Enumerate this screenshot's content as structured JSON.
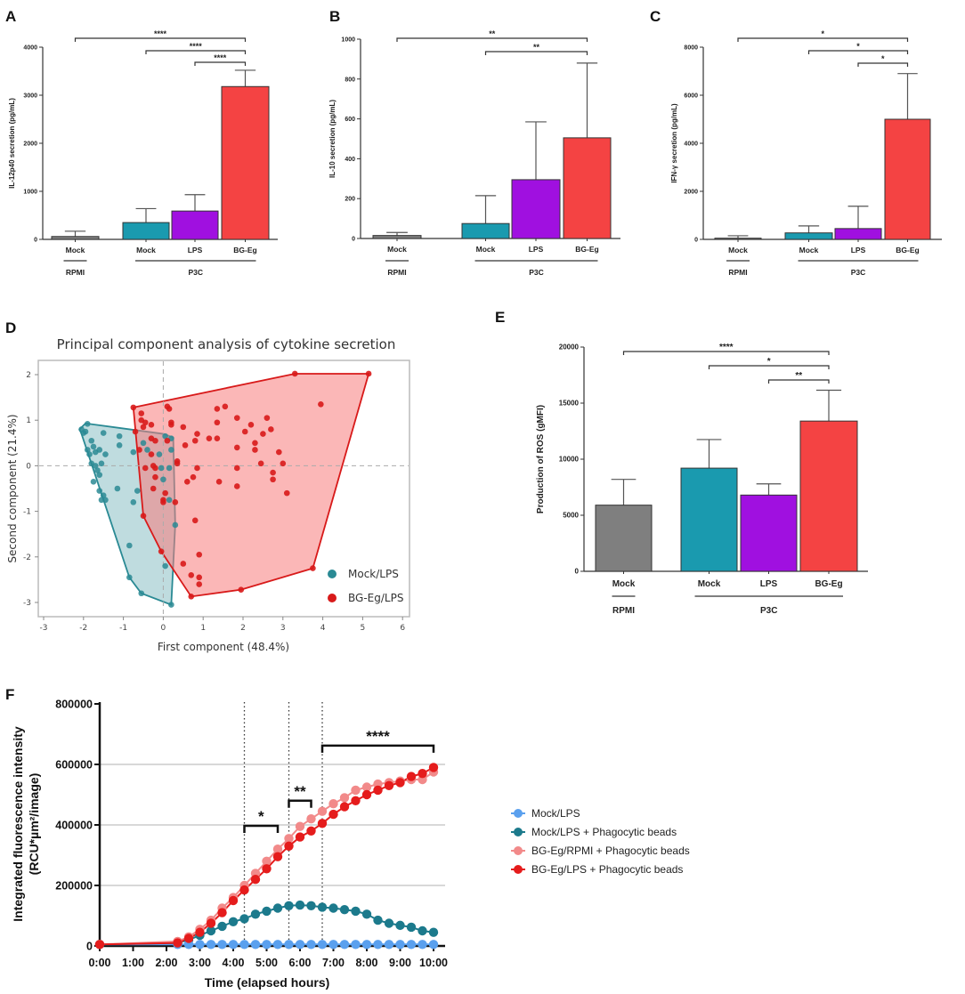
{
  "colors": {
    "gray": "#7f7f7f",
    "teal": "#1a9aaf",
    "purple": "#a010e0",
    "red": "#f44343"
  },
  "chart_data": [
    {
      "letter": "A",
      "type": "bar",
      "ylabel": "IL-12p40 secretion (pg/mL)",
      "ylim": [
        0,
        4000
      ],
      "yticks": [
        0,
        1000,
        2000,
        3000,
        4000
      ],
      "categories": [
        "Mock",
        "Mock",
        "LPS",
        "BG-Eg"
      ],
      "values": [
        60,
        350,
        590,
        3180
      ],
      "error_upper": [
        170,
        640,
        930,
        3520
      ],
      "bar_colors": [
        "#7f7f7f",
        "#1a9aaf",
        "#a010e0",
        "#f44343"
      ],
      "groups": [
        {
          "label": "RPMI",
          "from": 0,
          "to": 0
        },
        {
          "label": "P3C",
          "from": 1,
          "to": 3
        }
      ],
      "significance": [
        {
          "from": 0,
          "to": 3,
          "label": "****"
        },
        {
          "from": 1,
          "to": 3,
          "label": "****"
        },
        {
          "from": 2,
          "to": 3,
          "label": "****"
        }
      ]
    },
    {
      "letter": "B",
      "type": "bar",
      "ylabel": "IL-10 secretion (pg/mL)",
      "ylim": [
        0,
        1000
      ],
      "yticks": [
        0,
        200,
        400,
        600,
        800,
        1000
      ],
      "categories": [
        "Mock",
        "Mock",
        "LPS",
        "BG-Eg"
      ],
      "values": [
        15,
        75,
        295,
        505
      ],
      "error_upper": [
        30,
        215,
        585,
        880
      ],
      "bar_colors": [
        "#7f7f7f",
        "#1a9aaf",
        "#a010e0",
        "#f44343"
      ],
      "groups": [
        {
          "label": "RPMI",
          "from": 0,
          "to": 0
        },
        {
          "label": "P3C",
          "from": 1,
          "to": 3
        }
      ],
      "significance": [
        {
          "from": 0,
          "to": 3,
          "label": "**"
        },
        {
          "from": 1,
          "to": 3,
          "label": "**"
        }
      ]
    },
    {
      "letter": "C",
      "type": "bar",
      "ylabel": "IFN-γ secretion (pg/mL)",
      "ylim": [
        0,
        8000
      ],
      "yticks": [
        0,
        2000,
        4000,
        6000,
        8000
      ],
      "categories": [
        "Mock",
        "Mock",
        "LPS",
        "BG-Eg"
      ],
      "values": [
        50,
        270,
        450,
        5000
      ],
      "error_upper": [
        150,
        560,
        1380,
        6900
      ],
      "bar_colors": [
        "#7f7f7f",
        "#1a9aaf",
        "#a010e0",
        "#f44343"
      ],
      "groups": [
        {
          "label": "RPMI",
          "from": 0,
          "to": 0
        },
        {
          "label": "P3C",
          "from": 1,
          "to": 3
        }
      ],
      "significance": [
        {
          "from": 0,
          "to": 3,
          "label": "*"
        },
        {
          "from": 1,
          "to": 3,
          "label": "*"
        },
        {
          "from": 2,
          "to": 3,
          "label": "*"
        }
      ]
    },
    {
      "letter": "D",
      "type": "scatter",
      "title": "Principal component analysis of cytokine secretion",
      "xlabel": "First component (48.4%)",
      "ylabel": "Second component (21.4%)",
      "xlim": [
        -3,
        6
      ],
      "ylim": [
        -3.35,
        2.3
      ],
      "xticks": [
        -3,
        -2,
        -1,
        0,
        1,
        2,
        3,
        4,
        5,
        6
      ],
      "yticks": [
        -3,
        -2,
        -1,
        0,
        1,
        2
      ],
      "legend_position": "bottom-right",
      "series": [
        {
          "name": "Mock/LPS",
          "color": "#2a8a94",
          "fill": "#2a8a94",
          "hull": [
            [
              -2.1,
              0.8
            ],
            [
              -1.95,
              0.93
            ],
            [
              0.0,
              0.7
            ],
            [
              0.25,
              0.62
            ],
            [
              0.3,
              -1.3
            ],
            [
              0.2,
              -3.05
            ],
            [
              -0.55,
              -2.8
            ],
            [
              -0.85,
              -2.45
            ],
            [
              -2.05,
              0.7
            ]
          ],
          "points": [
            [
              -2.05,
              0.8
            ],
            [
              -1.95,
              0.75
            ],
            [
              -1.9,
              0.92
            ],
            [
              -2.0,
              0.72
            ],
            [
              -1.8,
              0.55
            ],
            [
              -1.75,
              0.42
            ],
            [
              -1.9,
              0.35
            ],
            [
              -1.85,
              0.25
            ],
            [
              -1.7,
              0.3
            ],
            [
              -1.6,
              0.35
            ],
            [
              -1.5,
              0.72
            ],
            [
              -1.45,
              0.25
            ],
            [
              -1.8,
              0.05
            ],
            [
              -1.7,
              0.0
            ],
            [
              -1.65,
              -0.1
            ],
            [
              -1.6,
              -0.2
            ],
            [
              -1.55,
              0.05
            ],
            [
              -1.75,
              -0.35
            ],
            [
              -1.6,
              -0.55
            ],
            [
              -1.55,
              -0.75
            ],
            [
              -1.45,
              -0.75
            ],
            [
              -1.5,
              -0.65
            ],
            [
              -1.15,
              -0.5
            ],
            [
              -1.1,
              0.45
            ],
            [
              -1.1,
              0.65
            ],
            [
              -0.75,
              -0.8
            ],
            [
              -0.65,
              -0.55
            ],
            [
              -0.75,
              0.3
            ],
            [
              -0.5,
              0.5
            ],
            [
              -0.4,
              0.35
            ],
            [
              -0.1,
              0.25
            ],
            [
              -0.05,
              -0.05
            ],
            [
              0.0,
              -0.3
            ],
            [
              0.05,
              0.65
            ],
            [
              0.15,
              -0.05
            ],
            [
              0.2,
              0.35
            ],
            [
              0.2,
              0.6
            ],
            [
              0.15,
              -0.75
            ],
            [
              0.3,
              -1.3
            ],
            [
              -0.85,
              -1.75
            ],
            [
              -0.85,
              -2.45
            ],
            [
              -0.55,
              -2.8
            ],
            [
              0.05,
              -2.2
            ],
            [
              0.2,
              -3.05
            ]
          ]
        },
        {
          "name": "BG-Eg/LPS",
          "color": "#d81a1a",
          "fill": "#f77b7b",
          "hull": [
            [
              -0.75,
              1.28
            ],
            [
              3.3,
              2.02
            ],
            [
              5.15,
              2.02
            ],
            [
              3.75,
              -2.25
            ],
            [
              1.95,
              -2.72
            ],
            [
              0.7,
              -2.87
            ],
            [
              -0.05,
              -1.88
            ],
            [
              -0.5,
              -1.1
            ]
          ],
          "points": [
            [
              -0.75,
              1.28
            ],
            [
              -0.55,
              1.15
            ],
            [
              -0.55,
              1.0
            ],
            [
              -0.45,
              0.95
            ],
            [
              -0.3,
              0.9
            ],
            [
              -0.5,
              0.85
            ],
            [
              -0.7,
              0.75
            ],
            [
              -0.3,
              0.6
            ],
            [
              -0.2,
              0.55
            ],
            [
              -0.6,
              0.35
            ],
            [
              -0.3,
              0.25
            ],
            [
              -0.45,
              -0.05
            ],
            [
              -0.2,
              -0.05
            ],
            [
              -0.25,
              0.0
            ],
            [
              -0.2,
              -0.25
            ],
            [
              -0.25,
              -0.5
            ],
            [
              0.05,
              -0.6
            ],
            [
              0.0,
              -0.8
            ],
            [
              0.0,
              -0.75
            ],
            [
              0.1,
              1.3
            ],
            [
              0.15,
              1.25
            ],
            [
              0.2,
              0.95
            ],
            [
              0.2,
              0.9
            ],
            [
              0.1,
              0.55
            ],
            [
              0.35,
              0.1
            ],
            [
              0.35,
              0.05
            ],
            [
              0.3,
              -0.8
            ],
            [
              0.5,
              0.85
            ],
            [
              0.55,
              0.45
            ],
            [
              0.6,
              -0.35
            ],
            [
              0.75,
              -0.25
            ],
            [
              0.8,
              0.55
            ],
            [
              0.85,
              0.7
            ],
            [
              0.85,
              -0.05
            ],
            [
              1.15,
              0.6
            ],
            [
              1.35,
              0.6
            ],
            [
              1.35,
              0.95
            ],
            [
              1.35,
              1.25
            ],
            [
              1.55,
              1.3
            ],
            [
              1.4,
              -0.35
            ],
            [
              1.85,
              1.05
            ],
            [
              1.85,
              0.4
            ],
            [
              1.85,
              -0.05
            ],
            [
              1.85,
              -0.45
            ],
            [
              2.05,
              0.75
            ],
            [
              2.2,
              0.9
            ],
            [
              2.3,
              0.5
            ],
            [
              2.3,
              0.35
            ],
            [
              2.45,
              0.05
            ],
            [
              2.5,
              0.7
            ],
            [
              2.6,
              1.05
            ],
            [
              2.7,
              0.8
            ],
            [
              2.75,
              -0.15
            ],
            [
              2.75,
              -0.3
            ],
            [
              2.9,
              0.3
            ],
            [
              3.0,
              0.05
            ],
            [
              3.1,
              -0.6
            ],
            [
              3.95,
              1.35
            ],
            [
              3.3,
              2.02
            ],
            [
              5.15,
              2.02
            ],
            [
              3.75,
              -2.25
            ],
            [
              1.95,
              -2.72
            ],
            [
              0.7,
              -2.87
            ],
            [
              -0.05,
              -1.88
            ],
            [
              -0.5,
              -1.1
            ],
            [
              0.8,
              -1.2
            ],
            [
              0.9,
              -1.95
            ],
            [
              0.5,
              -2.15
            ],
            [
              0.7,
              -2.4
            ],
            [
              0.9,
              -2.45
            ],
            [
              0.9,
              -2.6
            ]
          ]
        }
      ]
    },
    {
      "letter": "E",
      "type": "bar",
      "ylabel": "Production of ROS (gMFI)",
      "ylim": [
        0,
        20000
      ],
      "yticks": [
        0,
        5000,
        10000,
        15000,
        20000
      ],
      "categories": [
        "Mock",
        "Mock",
        "LPS",
        "BG-Eg"
      ],
      "values": [
        5900,
        9200,
        6800,
        13400
      ],
      "error_upper": [
        8200,
        11750,
        7800,
        16150
      ],
      "bar_colors": [
        "#7f7f7f",
        "#1a9aaf",
        "#a010e0",
        "#f44343"
      ],
      "groups": [
        {
          "label": "RPMI",
          "from": 0,
          "to": 0
        },
        {
          "label": "P3C",
          "from": 1,
          "to": 3
        }
      ],
      "significance": [
        {
          "from": 0,
          "to": 3,
          "label": "****"
        },
        {
          "from": 1,
          "to": 3,
          "label": "*"
        },
        {
          "from": 2,
          "to": 3,
          "label": "**"
        }
      ]
    },
    {
      "letter": "F",
      "type": "line",
      "xlabel": "Time (elapsed hours)",
      "ylabel": "Integrated fluorescence intensity",
      "ylabel2": "(RCU*µm²/image)",
      "ylim": [
        0,
        800000
      ],
      "yticks": [
        0,
        200000,
        400000,
        600000,
        800000
      ],
      "xticks": [
        "0:00",
        "1:00",
        "2:00",
        "3:00",
        "4:00",
        "5:00",
        "6:00",
        "7:00",
        "8:00",
        "9:00",
        "10:00"
      ],
      "grid": "horizontal",
      "legend_position": "right",
      "x": [
        "0:00",
        "2:20",
        "2:40",
        "3:00",
        "3:20",
        "3:40",
        "4:00",
        "4:20",
        "4:40",
        "5:00",
        "5:20",
        "5:40",
        "6:00",
        "6:20",
        "6:40",
        "7:00",
        "7:20",
        "7:40",
        "8:00",
        "8:20",
        "8:40",
        "9:00",
        "9:20",
        "9:40",
        "10:00"
      ],
      "series": [
        {
          "name": "Mock/LPS",
          "color": "#5aa0ee",
          "values": [
            5000,
            5000,
            5000,
            5000,
            5000,
            5000,
            5000,
            5000,
            5000,
            5000,
            5000,
            5000,
            5000,
            5000,
            5000,
            5000,
            5000,
            5000,
            5000,
            5000,
            5000,
            5000,
            5000,
            5000,
            5000
          ]
        },
        {
          "name": "Mock/LPS + Phagocytic beads",
          "color": "#1c7a8c",
          "values": [
            5000,
            10000,
            20000,
            35000,
            50000,
            65000,
            80000,
            90000,
            105000,
            115000,
            125000,
            133000,
            135000,
            133000,
            128000,
            125000,
            120000,
            115000,
            105000,
            85000,
            75000,
            68000,
            62000,
            50000,
            45000
          ]
        },
        {
          "name": "BG-Eg/RPMI + Phagocytic beads",
          "color": "#f28a8a",
          "values": [
            5000,
            15000,
            30000,
            55000,
            85000,
            125000,
            160000,
            200000,
            240000,
            280000,
            320000,
            355000,
            395000,
            420000,
            445000,
            470000,
            490000,
            515000,
            525000,
            535000,
            540000,
            545000,
            550000,
            550000,
            575000
          ]
        },
        {
          "name": "BG-Eg/LPS + Phagocytic beads",
          "color": "#e51c1c",
          "values": [
            5000,
            10000,
            25000,
            45000,
            75000,
            110000,
            150000,
            185000,
            220000,
            255000,
            295000,
            330000,
            360000,
            380000,
            405000,
            435000,
            460000,
            480000,
            500000,
            515000,
            530000,
            540000,
            560000,
            570000,
            590000
          ]
        }
      ],
      "reference_lines": [
        "4:20",
        "5:40",
        "6:40"
      ],
      "significance": [
        {
          "from": "4:20",
          "to": "5:20",
          "y": 397000,
          "label": "*"
        },
        {
          "from": "5:40",
          "to": "6:20",
          "y": 480000,
          "label": "**"
        },
        {
          "from": "6:40",
          "to": "10:00",
          "y": 662000,
          "label": "****"
        }
      ]
    }
  ]
}
